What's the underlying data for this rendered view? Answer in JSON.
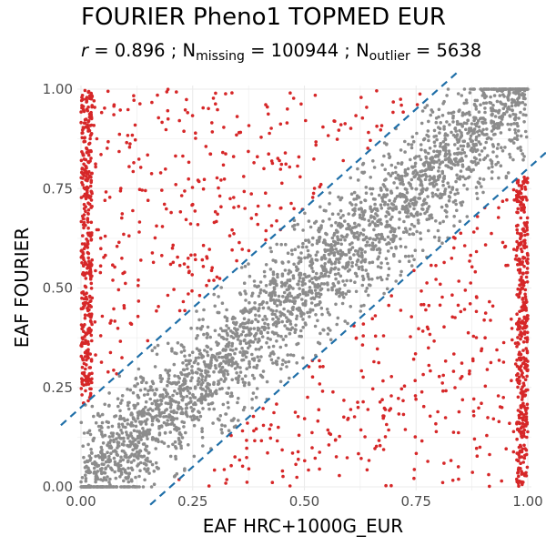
{
  "chart_data": {
    "type": "scatter",
    "title": "FOURIER Pheno1 TOPMED EUR",
    "subtitle": {
      "r_symbol": "r",
      "r_text": " = 0.896 ; N",
      "missing_sub": "missing",
      "missing_text": " = 100944 ; N",
      "outlier_sub": "outlier",
      "outlier_text": " = 5638"
    },
    "xlabel": "EAF HRC+1000G_EUR",
    "ylabel": "EAF FOURIER",
    "xlim": [
      0,
      1
    ],
    "ylim": [
      0,
      1
    ],
    "x_ticks": [
      "0.00",
      "0.25",
      "0.50",
      "0.75",
      "1.00"
    ],
    "y_ticks": [
      "0.00",
      "0.25",
      "0.50",
      "0.75",
      "1.00"
    ],
    "grid": true,
    "reference_lines": [
      {
        "slope": 1,
        "intercept": 0.2
      },
      {
        "slope": 1,
        "intercept": -0.2
      }
    ],
    "series": [
      {
        "role": "inlier",
        "color": "#8c8c8c",
        "band_halfwidth": 0.2,
        "approx_points": 3000
      },
      {
        "role": "outlier",
        "color": "#d62728",
        "approx_points": 1400
      }
    ],
    "colors": {
      "inlier": "#8c8c8c",
      "outlier": "#d62728",
      "reference_line": "#1f6fa8",
      "grid": "#ebebeb"
    }
  }
}
